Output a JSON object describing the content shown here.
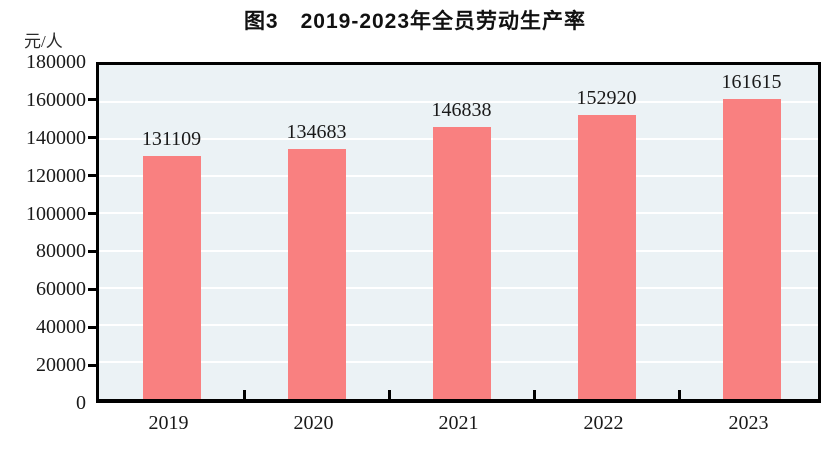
{
  "figure": {
    "title": "图3　2019-2023年全员劳动生产率",
    "unit_label": "元/人"
  },
  "chart_data": {
    "type": "bar",
    "title": "图3　2019-2023年全员劳动生产率",
    "categories": [
      "2019",
      "2020",
      "2021",
      "2022",
      "2023"
    ],
    "values": [
      131109,
      134683,
      146838,
      152920,
      161615
    ],
    "data_labels": [
      "131109",
      "134683",
      "146838",
      "152920",
      "161615"
    ],
    "xlabel": "",
    "ylabel": "元/人",
    "ylim": [
      0,
      180000
    ],
    "ytick_step": 20000,
    "ytick_labels": [
      "0",
      "20000",
      "40000",
      "60000",
      "80000",
      "100000",
      "120000",
      "140000",
      "160000",
      "180000"
    ],
    "grid": true,
    "legend": "none",
    "colors": {
      "bar": "#F98080",
      "plot_background": "#EBF2F5",
      "gridline": "#FFFFFF",
      "axis": "#000000",
      "text": "#1A1A1A"
    }
  }
}
